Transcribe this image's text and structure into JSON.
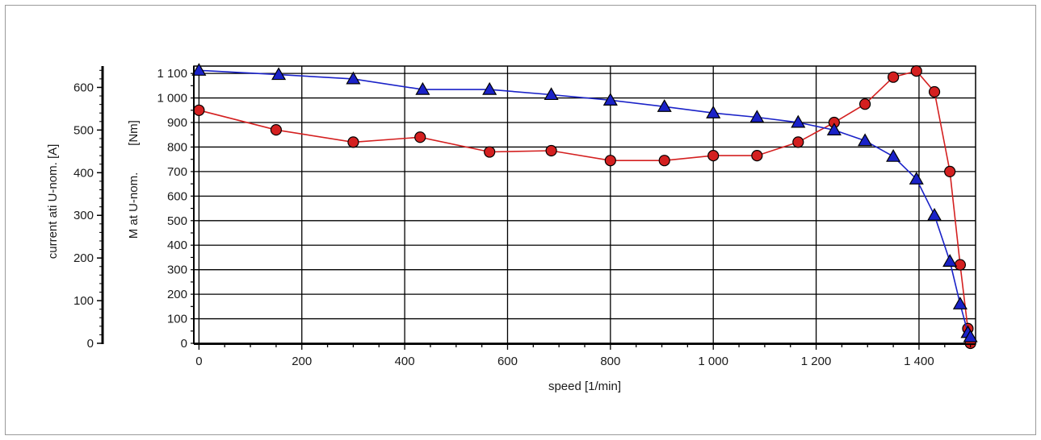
{
  "chart_data": {
    "type": "line",
    "xlabel": "speed [1/min]",
    "xlim": [
      -10,
      1510
    ],
    "x_ticks": [
      0,
      200,
      400,
      600,
      800,
      1000,
      1200,
      1400
    ],
    "x_tick_labels": [
      "0",
      "200",
      "400",
      "600",
      "800",
      "1 000",
      "1 200",
      "1 400"
    ],
    "ylabel_torque": "M at U-nom.",
    "ylabel_torque_unit": "[Nm]",
    "ylim_torque": [
      0,
      1130
    ],
    "y_torque_ticks": [
      0,
      100,
      200,
      300,
      400,
      500,
      600,
      700,
      800,
      900,
      1000,
      1100
    ],
    "y_torque_tick_labels": [
      "0",
      "100",
      "200",
      "300",
      "400",
      "500",
      "600",
      "700",
      "800",
      "900",
      "1 000",
      "1 100"
    ],
    "ylabel_current": "current ati U-nom.  [A]",
    "ylim_current": [
      0,
      650
    ],
    "y_current_ticks": [
      0,
      100,
      200,
      300,
      400,
      500,
      600
    ],
    "y_current_tick_labels": [
      "0",
      "100",
      "200",
      "300",
      "400",
      "500",
      "600"
    ],
    "grid": true,
    "series": [
      {
        "axis": "torque",
        "color": "#d42020",
        "marker": "circle",
        "x": [
          0,
          150,
          300,
          430,
          565,
          685,
          800,
          905,
          1000,
          1085,
          1165,
          1235,
          1295,
          1350,
          1395,
          1430,
          1460,
          1480,
          1495,
          1500
        ],
        "y": [
          950,
          870,
          820,
          840,
          780,
          785,
          745,
          745,
          765,
          765,
          820,
          900,
          975,
          1085,
          1110,
          1025,
          700,
          320,
          60,
          0
        ]
      },
      {
        "axis": "current",
        "color": "#1a22c8",
        "marker": "triangle",
        "x": [
          0,
          155,
          300,
          435,
          565,
          685,
          800,
          905,
          1000,
          1085,
          1165,
          1235,
          1295,
          1350,
          1395,
          1430,
          1460,
          1480,
          1495,
          1500
        ],
        "y": [
          640,
          630,
          620,
          595,
          595,
          583,
          570,
          555,
          540,
          530,
          518,
          500,
          475,
          438,
          385,
          300,
          192,
          92,
          25,
          15
        ]
      }
    ]
  }
}
